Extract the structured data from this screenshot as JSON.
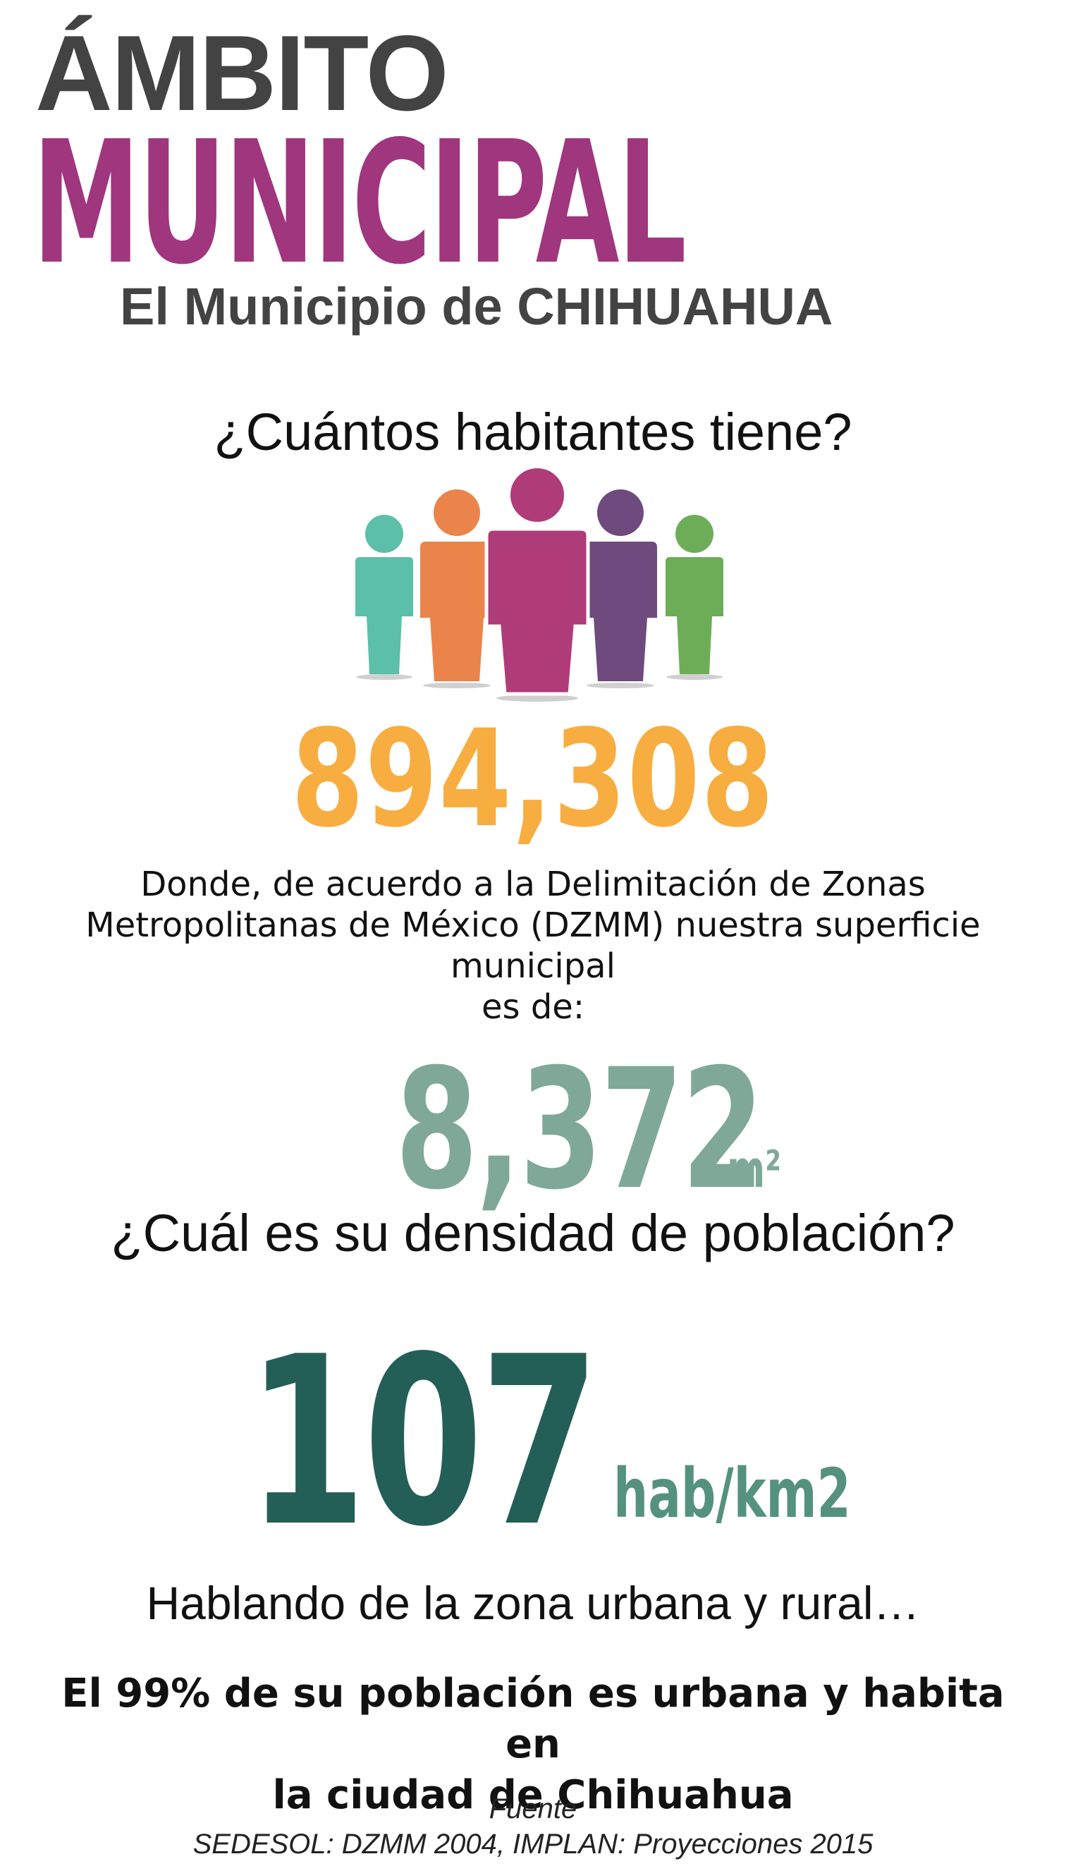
{
  "header": {
    "title_top": "ÁMBITO",
    "title_main": "MUNICIPAL",
    "subtitle": "El Municipio de CHIHUAHUA"
  },
  "population_section": {
    "question": "¿Cuántos habitantes tiene?",
    "value": "894,308",
    "people_colors": [
      "#5cbfa9",
      "#eb844b",
      "#b03b79",
      "#6e4a7e",
      "#6ead58"
    ]
  },
  "area_section": {
    "description_lines": [
      "Donde, de acuerdo a la Delimitación de Zonas",
      "Metropolitanas de México (DZMM) nuestra superficie",
      "municipal",
      "es de:"
    ],
    "value": "8,372",
    "unit": "Km²"
  },
  "density_section": {
    "question": "¿Cuál es su densidad de población?",
    "value": "107",
    "unit": "hab/km2"
  },
  "urban_section": {
    "intro": "Hablando de la zona urbana y rural…",
    "conclusion_lines": [
      "El 99% de su población es urbana y habita en",
      "la ciudad de Chihuahua"
    ]
  },
  "source": {
    "label": "Fuente",
    "text": "SEDESOL: DZMM 2004, IMPLAN: Proyecciones 2015"
  },
  "colors": {
    "title_gray": "#434343",
    "title_magenta": "#a0367e",
    "population_orange": "#f8ad40",
    "area_sage": "#7fa898",
    "density_dark_green": "#235f56",
    "density_unit_green": "#55917f"
  }
}
